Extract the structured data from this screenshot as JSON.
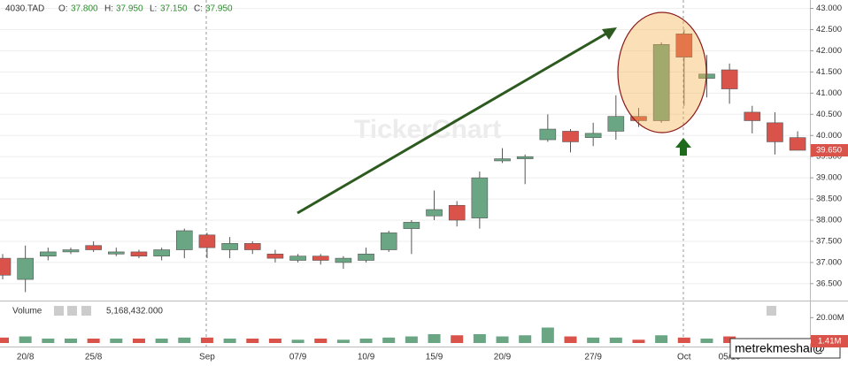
{
  "header": {
    "symbol": "4030.TAD",
    "o_label": "O:",
    "o": "37.800",
    "h_label": "H:",
    "h": "37.950",
    "l_label": "L:",
    "l": "37.150",
    "c_label": "C:",
    "c": "37.950",
    "volume_label": "Volume",
    "volume_value": "5,168,432.000",
    "watermark": "TickerChart",
    "credit": "metrekmeshal@"
  },
  "chart_data": {
    "type": "candlestick",
    "categories": [
      null,
      "20/8",
      null,
      null,
      "25/8",
      null,
      null,
      null,
      null,
      "Sep",
      null,
      null,
      null,
      "07/9",
      null,
      null,
      "10/9",
      null,
      null,
      "15/9",
      null,
      null,
      "20/9",
      null,
      null,
      null,
      "27/9",
      null,
      null,
      null,
      "Oct",
      null,
      "05/10",
      null,
      null,
      null
    ],
    "open": [
      37.1,
      36.6,
      37.15,
      37.25,
      37.4,
      37.2,
      37.25,
      37.15,
      37.3,
      37.65,
      37.3,
      37.45,
      37.2,
      37.05,
      37.15,
      37.0,
      37.05,
      37.3,
      37.8,
      38.1,
      38.35,
      38.05,
      39.4,
      39.45,
      39.9,
      40.1,
      39.95,
      40.1,
      40.45,
      40.35,
      42.4,
      41.35,
      41.55,
      40.55,
      40.3,
      39.95
    ],
    "high": [
      37.2,
      37.4,
      37.35,
      37.35,
      37.5,
      37.35,
      37.3,
      37.35,
      37.8,
      37.7,
      37.6,
      37.5,
      37.3,
      37.2,
      37.2,
      37.15,
      37.35,
      37.75,
      38.0,
      38.7,
      38.45,
      39.15,
      39.7,
      39.55,
      40.5,
      40.15,
      40.3,
      40.95,
      40.65,
      42.2,
      42.5,
      41.9,
      41.7,
      40.7,
      40.55,
      40.1
    ],
    "low": [
      36.6,
      36.3,
      37.05,
      37.2,
      37.25,
      37.15,
      37.1,
      37.05,
      37.1,
      37.1,
      37.1,
      37.2,
      37.0,
      37.0,
      36.95,
      36.85,
      37.0,
      37.25,
      37.2,
      38.0,
      37.85,
      37.8,
      39.35,
      38.85,
      39.85,
      39.6,
      39.75,
      39.9,
      40.2,
      40.3,
      40.7,
      40.9,
      40.75,
      40.05,
      39.55,
      39.65
    ],
    "close": [
      36.7,
      37.1,
      37.25,
      37.3,
      37.3,
      37.25,
      37.15,
      37.3,
      37.75,
      37.35,
      37.45,
      37.3,
      37.1,
      37.15,
      37.05,
      37.1,
      37.2,
      37.7,
      37.95,
      38.25,
      38.0,
      39.0,
      39.45,
      39.5,
      40.15,
      39.85,
      40.05,
      40.45,
      40.35,
      42.15,
      41.85,
      41.45,
      41.1,
      40.35,
      39.85,
      39.65
    ],
    "volume": [
      4300000,
      5200000,
      3500000,
      3500000,
      3500000,
      3500000,
      3500000,
      3500000,
      4300000,
      4300000,
      3500000,
      3500000,
      3500000,
      2600000,
      3500000,
      2600000,
      3500000,
      4300000,
      5200000,
      7000000,
      6100000,
      7000000,
      5200000,
      6100000,
      12200000,
      5200000,
      4300000,
      4300000,
      2600000,
      6100000,
      4300000,
      3500000,
      5200000,
      3500000,
      2600000,
      1410000
    ],
    "up_color": "#6aa584",
    "down_color": "#d9534a",
    "ylim": [
      36.1,
      43.2
    ],
    "yticks": [
      {
        "value": 36.5,
        "label": "36.500"
      },
      {
        "value": 37,
        "label": "37.000"
      },
      {
        "value": 37.5,
        "label": "37.500"
      },
      {
        "value": 38,
        "label": "38.000"
      },
      {
        "value": 38.5,
        "label": "38.500"
      },
      {
        "value": 39,
        "label": "39.000"
      },
      {
        "value": 39.5,
        "label": "39.500"
      },
      {
        "value": 40,
        "label": "40.000"
      },
      {
        "value": 40.5,
        "label": "40.500"
      },
      {
        "value": 41,
        "label": "41.000"
      },
      {
        "value": 41.5,
        "label": "41.500"
      },
      {
        "value": 42,
        "label": "42.000"
      },
      {
        "value": 42.5,
        "label": "42.500"
      },
      {
        "value": 43,
        "label": "43.000"
      }
    ],
    "vlim": [
      0,
      30000000
    ],
    "vticks": [
      {
        "value": 20000000,
        "label": "20.00M"
      }
    ],
    "last_close": {
      "value": 39.65,
      "label": "39.650"
    },
    "last_volume": {
      "value": 1410000,
      "label": "1.41M"
    },
    "grid": true
  }
}
